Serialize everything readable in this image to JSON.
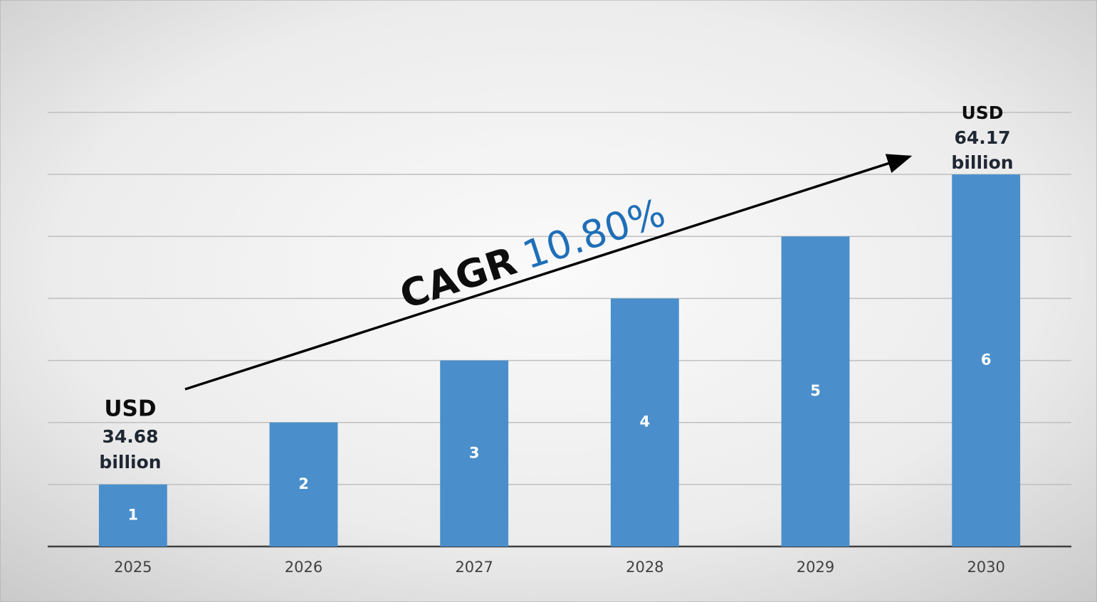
{
  "chart_data": {
    "type": "bar",
    "categories": [
      "2025",
      "2026",
      "2027",
      "2028",
      "2029",
      "2030"
    ],
    "values": [
      1,
      2,
      3,
      4,
      5,
      6
    ],
    "color": "#4a8fcb",
    "ylim": [
      0,
      7
    ],
    "yticks": [
      0,
      1,
      2,
      3,
      4,
      5,
      6,
      7
    ],
    "grid": true,
    "annotations": [
      {
        "lines": [
          "USD",
          "34.68",
          "billion"
        ]
      },
      {
        "lines": [
          "USD",
          "64.17",
          "billion"
        ]
      },
      {
        "lines": [
          "CAGR",
          "10.80%"
        ]
      }
    ]
  }
}
